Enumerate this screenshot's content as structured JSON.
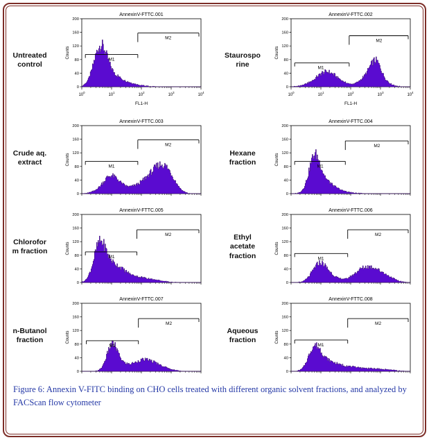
{
  "theme": {
    "border_color": "#7d2e28",
    "caption_color": "#2438a6",
    "hist_fill": "#5a0bd0",
    "hist_stroke": "#30065e",
    "axis_color": "#000000",
    "background": "#ffffff"
  },
  "caption": {
    "label": "Figure 6:",
    "text": "Annexin V-FITC binding on CHO cells treated with different organic solvent fractions, and analyzed by FACScan flow cytometer"
  },
  "panels": [
    {
      "row_label": "Untreated\ncontrol"
    },
    {
      "row_label": "Staurospo\nrine"
    },
    {
      "row_label": "Crude aq.\nextract"
    },
    {
      "row_label": "Hexane\nfraction"
    },
    {
      "row_label": "Chlorofor\nm fraction"
    },
    {
      "row_label": "Ethyl\nacetate\nfraction"
    },
    {
      "row_label": "n-Butanol\nfraction"
    },
    {
      "row_label": "Aqueous\nfraction"
    }
  ],
  "chart_data": [
    {
      "type": "area",
      "title": "AnnexinV-FTTC.001",
      "xlabel": "FL1-H",
      "ylabel": "Counts",
      "ylim": [
        0,
        200
      ],
      "yticks": [
        0,
        40,
        80,
        120,
        160,
        200
      ],
      "x_range": [
        0,
        4
      ],
      "xtick_labels": [
        "10^0",
        "10^1",
        "10^2",
        "10^3",
        "10^4"
      ],
      "gates": [
        {
          "label": "M1",
          "from": 0.12,
          "to": 1.88,
          "y": 95,
          "label_t": 1.0
        },
        {
          "label": "M2",
          "from": 1.88,
          "to": 3.93,
          "y": 158,
          "left_tick": 13,
          "label_t": 2.9
        }
      ],
      "peaks": [
        {
          "c": 0.62,
          "h": 105,
          "w": 0.22
        },
        {
          "c": 1.0,
          "h": 30,
          "w": 0.35
        },
        {
          "c": 1.6,
          "h": 6,
          "w": 0.4
        }
      ]
    },
    {
      "type": "area",
      "title": "AnnexinV-FTTC.002",
      "xlabel": "FL1-H",
      "ylabel": "Counts",
      "ylim": [
        0,
        200
      ],
      "yticks": [
        0,
        40,
        80,
        120,
        160,
        200
      ],
      "x_range": [
        0,
        4
      ],
      "xtick_labels": [
        "10^0",
        "10^1",
        "10^2",
        "10^3",
        "10^4"
      ],
      "gates": [
        {
          "label": "M1",
          "from": 0.12,
          "to": 1.95,
          "y": 70,
          "label_t": 1.0
        },
        {
          "label": "M2",
          "from": 1.95,
          "to": 3.93,
          "y": 150,
          "left_tick": 13,
          "label_t": 2.95
        }
      ],
      "peaks": [
        {
          "c": 0.6,
          "h": 5,
          "w": 0.25
        },
        {
          "c": 1.15,
          "h": 40,
          "w": 0.3
        },
        {
          "c": 1.6,
          "h": 12,
          "w": 0.3
        },
        {
          "c": 2.55,
          "h": 28,
          "w": 0.25
        },
        {
          "c": 2.85,
          "h": 62,
          "w": 0.18
        },
        {
          "c": 3.2,
          "h": 10,
          "w": 0.2
        }
      ]
    },
    {
      "type": "area",
      "title": "AnnexinV-FTTC.003",
      "xlabel": "",
      "ylabel": "Counts",
      "ylim": [
        0,
        200
      ],
      "yticks": [
        0,
        40,
        80,
        120,
        160,
        200
      ],
      "x_range": [
        0,
        4
      ],
      "xtick_labels": [],
      "gates": [
        {
          "label": "M1",
          "from": 0.12,
          "to": 1.88,
          "y": 95,
          "label_t": 1.0
        },
        {
          "label": "M2",
          "from": 1.88,
          "to": 3.93,
          "y": 158,
          "left_tick": 13,
          "label_t": 2.9
        }
      ],
      "peaks": [
        {
          "c": 0.5,
          "h": 4,
          "w": 0.2
        },
        {
          "c": 0.95,
          "h": 46,
          "w": 0.25
        },
        {
          "c": 1.35,
          "h": 15,
          "w": 0.3
        },
        {
          "c": 2.15,
          "h": 32,
          "w": 0.35
        },
        {
          "c": 2.5,
          "h": 38,
          "w": 0.25
        },
        {
          "c": 2.8,
          "h": 52,
          "w": 0.22
        },
        {
          "c": 3.1,
          "h": 20,
          "w": 0.2
        }
      ]
    },
    {
      "type": "area",
      "title": "AnnexinV-FTTC.004",
      "xlabel": "",
      "ylabel": "Counts",
      "ylim": [
        0,
        200
      ],
      "yticks": [
        0,
        40,
        80,
        120,
        160,
        200
      ],
      "x_range": [
        0,
        4
      ],
      "xtick_labels": [],
      "gates": [
        {
          "label": "M1",
          "from": 0.12,
          "to": 1.82,
          "y": 95,
          "label_t": 0.98
        },
        {
          "label": "M2",
          "from": 1.82,
          "to": 3.93,
          "y": 155,
          "left_tick": 13,
          "label_t": 2.88
        }
      ],
      "peaks": [
        {
          "c": 0.78,
          "h": 90,
          "w": 0.18
        },
        {
          "c": 1.05,
          "h": 35,
          "w": 0.3
        },
        {
          "c": 1.5,
          "h": 8,
          "w": 0.4
        }
      ]
    },
    {
      "type": "area",
      "title": "AnnexinV-FTTC.005",
      "xlabel": "",
      "ylabel": "Counts",
      "ylim": [
        0,
        200
      ],
      "yticks": [
        0,
        40,
        80,
        120,
        160,
        200
      ],
      "x_range": [
        0,
        4
      ],
      "xtick_labels": [],
      "gates": [
        {
          "label": "M1",
          "from": 0.12,
          "to": 1.85,
          "y": 90,
          "label_t": 1.0
        },
        {
          "label": "M2",
          "from": 1.85,
          "to": 3.93,
          "y": 155,
          "left_tick": 13,
          "label_t": 2.9
        }
      ],
      "peaks": [
        {
          "c": 0.6,
          "h": 95,
          "w": 0.2
        },
        {
          "c": 1.0,
          "h": 45,
          "w": 0.35
        },
        {
          "c": 1.6,
          "h": 15,
          "w": 0.5
        },
        {
          "c": 2.3,
          "h": 5,
          "w": 0.4
        }
      ]
    },
    {
      "type": "area",
      "title": "AnnexinV-FTTC.006",
      "xlabel": "",
      "ylabel": "Counts",
      "ylim": [
        0,
        200
      ],
      "yticks": [
        0,
        40,
        80,
        120,
        160,
        200
      ],
      "x_range": [
        0,
        4
      ],
      "xtick_labels": [],
      "gates": [
        {
          "label": "M1",
          "from": 0.12,
          "to": 1.9,
          "y": 85,
          "label_t": 1.0
        },
        {
          "label": "M2",
          "from": 1.9,
          "to": 3.93,
          "y": 155,
          "left_tick": 13,
          "label_t": 2.92
        }
      ],
      "peaks": [
        {
          "c": 0.95,
          "h": 50,
          "w": 0.24
        },
        {
          "c": 1.3,
          "h": 15,
          "w": 0.3
        },
        {
          "c": 2.45,
          "h": 38,
          "w": 0.35
        },
        {
          "c": 2.9,
          "h": 20,
          "w": 0.3
        },
        {
          "c": 3.3,
          "h": 8,
          "w": 0.25
        }
      ]
    },
    {
      "type": "area",
      "title": "AnnexinV-FTTC.007",
      "xlabel": "",
      "ylabel": "Counts",
      "ylim": [
        0,
        200
      ],
      "yticks": [
        0,
        40,
        80,
        120,
        160,
        200
      ],
      "x_range": [
        0,
        4
      ],
      "xtick_labels": [],
      "gates": [
        {
          "label": "M1",
          "from": 0.15,
          "to": 1.9,
          "y": 90,
          "label_t": 1.02
        },
        {
          "label": "M2",
          "from": 1.9,
          "to": 3.93,
          "y": 155,
          "left_tick": 13,
          "label_t": 2.92
        }
      ],
      "peaks": [
        {
          "c": 1.02,
          "h": 70,
          "w": 0.18
        },
        {
          "c": 1.35,
          "h": 18,
          "w": 0.3
        },
        {
          "c": 2.05,
          "h": 26,
          "w": 0.3
        },
        {
          "c": 2.5,
          "h": 16,
          "w": 0.35
        }
      ]
    },
    {
      "type": "area",
      "title": "AnnexinV-FTTC.008",
      "xlabel": "",
      "ylabel": "Counts",
      "ylim": [
        0,
        200
      ],
      "yticks": [
        0,
        40,
        80,
        120,
        160,
        200
      ],
      "x_range": [
        0,
        4
      ],
      "xtick_labels": [],
      "gates": [
        {
          "label": "M1",
          "from": 0.12,
          "to": 1.9,
          "y": 92,
          "label_t": 1.0
        },
        {
          "label": "M2",
          "from": 1.9,
          "to": 3.93,
          "y": 155,
          "left_tick": 13,
          "label_t": 2.92
        }
      ],
      "peaks": [
        {
          "c": 0.78,
          "h": 60,
          "w": 0.2
        },
        {
          "c": 1.1,
          "h": 25,
          "w": 0.3
        },
        {
          "c": 1.6,
          "h": 12,
          "w": 0.4
        },
        {
          "c": 2.3,
          "h": 8,
          "w": 0.5
        },
        {
          "c": 3.1,
          "h": 4,
          "w": 0.35
        }
      ]
    }
  ]
}
